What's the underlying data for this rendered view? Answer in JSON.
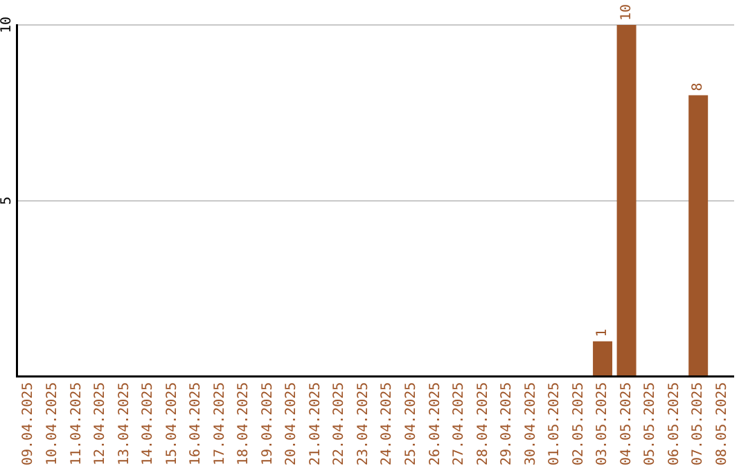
{
  "chart_data": {
    "type": "bar",
    "categories": [
      "09.04.2025",
      "10.04.2025",
      "11.04.2025",
      "12.04.2025",
      "13.04.2025",
      "14.04.2025",
      "15.04.2025",
      "16.04.2025",
      "17.04.2025",
      "18.04.2025",
      "19.04.2025",
      "20.04.2025",
      "21.04.2025",
      "22.04.2025",
      "23.04.2025",
      "24.04.2025",
      "25.04.2025",
      "26.04.2025",
      "27.04.2025",
      "28.04.2025",
      "29.04.2025",
      "30.04.2025",
      "01.05.2025",
      "02.05.2025",
      "03.05.2025",
      "04.05.2025",
      "05.05.2025",
      "06.05.2025",
      "07.05.2025",
      "08.05.2025"
    ],
    "values": [
      0,
      0,
      0,
      0,
      0,
      0,
      0,
      0,
      0,
      0,
      0,
      0,
      0,
      0,
      0,
      0,
      0,
      0,
      0,
      0,
      0,
      0,
      0,
      0,
      1,
      10,
      0,
      0,
      8,
      0
    ],
    "value_labels": [
      null,
      null,
      null,
      null,
      null,
      null,
      null,
      null,
      null,
      null,
      null,
      null,
      null,
      null,
      null,
      null,
      null,
      null,
      null,
      null,
      null,
      null,
      null,
      null,
      "1",
      "10",
      null,
      null,
      "8",
      null
    ],
    "color": "#a0572a",
    "ylim": [
      0,
      10
    ],
    "yticks": [
      5,
      10
    ],
    "grid": "y",
    "legend": false
  }
}
